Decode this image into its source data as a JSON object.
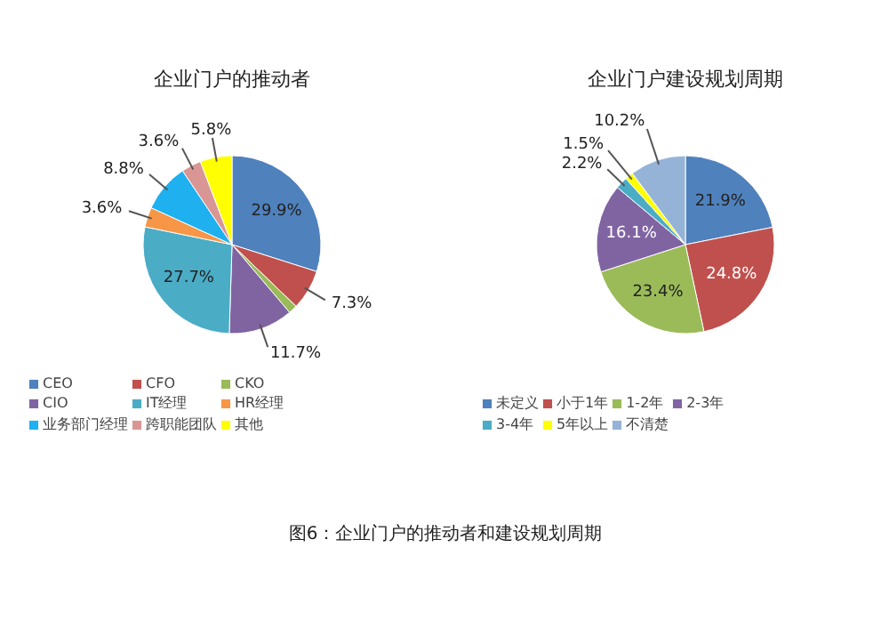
{
  "chart_data": [
    {
      "type": "pie",
      "title": "企业门户的推动者",
      "categories": [
        "CEO",
        "CFO",
        "CKO",
        "CIO",
        "IT经理",
        "HR经理",
        "业务部门经理",
        "跨职能团队",
        "其他"
      ],
      "values": [
        29.9,
        7.3,
        1.6,
        11.7,
        27.7,
        3.6,
        8.8,
        3.6,
        5.8
      ],
      "value_labels": [
        "29.9%",
        "7.3%",
        null,
        "11.7%",
        "27.7%",
        "3.6%",
        "8.8%",
        "3.6%",
        "5.8%"
      ],
      "colors": [
        "#4f81bd",
        "#c0504d",
        "#9bbb59",
        "#8064a2",
        "#4bacc6",
        "#f79646",
        "#1fb0f0",
        "#d99694",
        "#ffff00"
      ],
      "legend": "bottom"
    },
    {
      "type": "pie",
      "title": "企业门户建设规划周期",
      "categories": [
        "未定义",
        "小于1年",
        "1-2年",
        "2-3年",
        "3-4年",
        "5年以上",
        "不清楚"
      ],
      "values": [
        21.9,
        24.8,
        23.4,
        16.1,
        2.2,
        1.5,
        10.2
      ],
      "value_labels": [
        "21.9%",
        "24.8%",
        "23.4%",
        "16.1%",
        "2.2%",
        "1.5%",
        "10.2%"
      ],
      "colors": [
        "#4f81bd",
        "#c0504d",
        "#9bbb59",
        "#8064a2",
        "#4bacc6",
        "#ffff00",
        "#95b3d7"
      ],
      "legend": "bottom",
      "annotations": [
        "图6：企业门户的推动者和建设规划周期"
      ]
    }
  ]
}
